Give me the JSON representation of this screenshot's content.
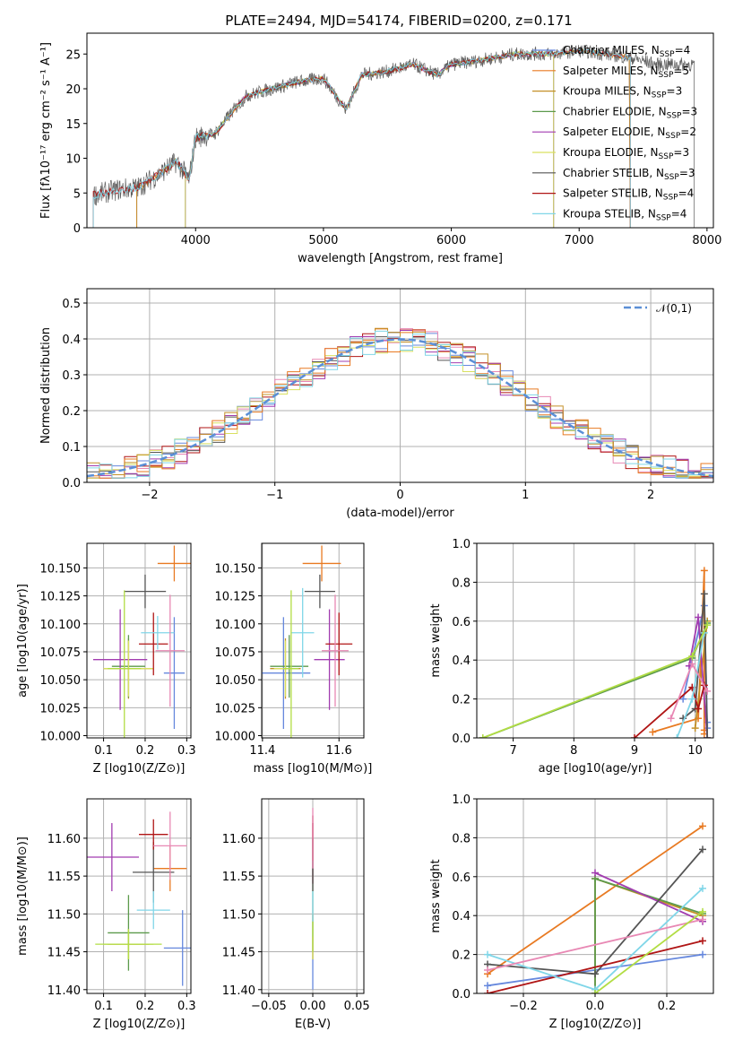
{
  "title": "PLATE=2494, MJD=54174, FIBERID=0200, z=0.171",
  "colors": [
    "#6688dd",
    "#e87a22",
    "#c49028",
    "#5c9a4c",
    "#a23cb0",
    "#d9e060",
    "#555555",
    "#b01515",
    "#80d6e8",
    "#e888b4",
    "#b2dd44"
  ],
  "chart_data": [
    {
      "id": "spectrum",
      "type": "line",
      "xlabel": "wavelength [Angstrom, rest frame]",
      "ylabel": "Flux [f_λ 10^-17 erg cm^-2 s^-1 A^-1]",
      "xlim": [
        3150,
        8050
      ],
      "ylim": [
        0,
        28
      ],
      "xticks": [
        4000,
        5000,
        6000,
        7000,
        8000
      ],
      "yticks": [
        0,
        5,
        10,
        15,
        20,
        25
      ],
      "grid": false,
      "legend_position": "right",
      "series": [
        {
          "name": "Chabrier MILES, N_SSP=4",
          "label": "Chabrier MILES, N",
          "nssp": "=4",
          "x": [
            3540,
            7400
          ]
        },
        {
          "name": "Salpeter MILES, N_SSP=5",
          "label": "Salpeter MILES, N",
          "nssp": "=5",
          "x": [
            3540,
            7400
          ]
        },
        {
          "name": "Kroupa MILES, N_SSP=3",
          "label": "Kroupa MILES, N",
          "nssp": "=3",
          "x": [
            3540,
            7400
          ]
        },
        {
          "name": "Chabrier ELODIE, N_SSP=3",
          "label": "Chabrier ELODIE, N",
          "nssp": "=3",
          "x": [
            3920,
            6800
          ]
        },
        {
          "name": "Salpeter ELODIE, N_SSP=2",
          "label": "Salpeter ELODIE, N",
          "nssp": "=2",
          "x": [
            3920,
            6800
          ]
        },
        {
          "name": "Kroupa ELODIE, N_SSP=3",
          "label": "Kroupa ELODIE, N",
          "nssp": "=3",
          "x": [
            3920,
            6800
          ]
        },
        {
          "name": "Chabrier STELIB, N_SSP=3",
          "label": "Chabrier STELIB, N",
          "nssp": "=3",
          "x": [
            3200,
            7900
          ]
        },
        {
          "name": "Salpeter STELIB, N_SSP=4",
          "label": "Salpeter STELIB, N",
          "nssp": "=4",
          "x": [
            3200,
            7400
          ]
        },
        {
          "name": "Kroupa STELIB, N_SSP=4",
          "label": "Kroupa STELIB, N",
          "nssp": "=4",
          "x": [
            3200,
            7400
          ]
        }
      ],
      "data_x": [
        3200,
        3400,
        3550,
        3700,
        3850,
        3950,
        4000,
        4150,
        4300,
        4400,
        4600,
        4800,
        5000,
        5175,
        5300,
        5500,
        5700,
        5890,
        6000,
        6200,
        6500,
        6800,
        7000,
        7200,
        7400,
        7600,
        7800
      ],
      "data_y": [
        4.7,
        5.5,
        5.8,
        7.5,
        9.5,
        7.0,
        13.0,
        13.5,
        17.0,
        19.0,
        20.0,
        21.0,
        21.5,
        17.0,
        22.0,
        22.5,
        23.5,
        22.0,
        23.5,
        24.0,
        25.0,
        25.0,
        25.5,
        25.0,
        24.5,
        23.5,
        23.5
      ]
    },
    {
      "id": "residuals",
      "type": "histogram",
      "xlabel": "(data-model)/error",
      "ylabel": "Normed distribution",
      "xlim": [
        -2.5,
        2.5
      ],
      "ylim": [
        0,
        0.54
      ],
      "xticks": [
        -2,
        -1,
        0,
        1,
        2
      ],
      "yticks": [
        0.0,
        0.1,
        0.2,
        0.3,
        0.4,
        0.5
      ],
      "grid": true,
      "legend_position": "top-right",
      "legend": "𝒩(0,1)",
      "bin_width": 0.1
    },
    {
      "id": "age-vs-Z",
      "type": "scatter",
      "xlabel": "Z [log10(Z/Z⊙)]",
      "ylabel": "age [log10(age/yr)]",
      "xlim": [
        0.06,
        0.31
      ],
      "ylim": [
        9.998,
        10.172
      ],
      "xticks": [
        0.1,
        0.2,
        0.3
      ],
      "yticks": [
        10.0,
        10.025,
        10.05,
        10.075,
        10.1,
        10.125,
        10.15
      ],
      "grid": true,
      "points": [
        {
          "x": 0.27,
          "y": 10.056,
          "xerr": 0.025,
          "yerr": 0.05,
          "c": 0
        },
        {
          "x": 0.27,
          "y": 10.154,
          "xerr": 0.04,
          "yerr": 0.016,
          "c": 1
        },
        {
          "x": 0.16,
          "y": 10.06,
          "xerr": 0.06,
          "yerr": 0.027,
          "c": 2
        },
        {
          "x": 0.16,
          "y": 10.062,
          "xerr": 0.04,
          "yerr": 0.028,
          "c": 3
        },
        {
          "x": 0.14,
          "y": 10.068,
          "xerr": 0.065,
          "yerr": 0.045,
          "c": 4
        },
        {
          "x": 0.16,
          "y": 10.06,
          "xerr": 0.06,
          "yerr": 0.025,
          "c": 5
        },
        {
          "x": 0.2,
          "y": 10.129,
          "xerr": 0.05,
          "yerr": 0.015,
          "c": 6
        },
        {
          "x": 0.22,
          "y": 10.082,
          "xerr": 0.035,
          "yerr": 0.028,
          "c": 7
        },
        {
          "x": 0.23,
          "y": 10.092,
          "xerr": 0.04,
          "yerr": 0.015,
          "c": 8
        },
        {
          "x": 0.26,
          "y": 10.076,
          "xerr": 0.035,
          "yerr": 0.05,
          "c": 9
        },
        {
          "x": 0.15,
          "y": 10.06,
          "xerr": 0.04,
          "yerr": 0.07,
          "c": 10
        }
      ]
    },
    {
      "id": "age-vs-mass",
      "type": "scatter",
      "xlabel": "mass [log10(M/M⊙)]",
      "ylabel": "",
      "xlim": [
        11.398,
        11.665
      ],
      "ylim": [
        9.998,
        10.172
      ],
      "xticks": [
        11.4,
        11.6
      ],
      "yticks": [
        10.0,
        10.025,
        10.05,
        10.075,
        10.1,
        10.125,
        10.15
      ],
      "grid": true,
      "points": [
        {
          "x": 11.455,
          "y": 10.056,
          "xerr": 0.07,
          "yerr": 0.05,
          "c": 0
        },
        {
          "x": 11.555,
          "y": 10.154,
          "xerr": 0.05,
          "yerr": 0.016,
          "c": 1
        },
        {
          "x": 11.46,
          "y": 10.06,
          "xerr": 0.04,
          "yerr": 0.027,
          "c": 2
        },
        {
          "x": 11.47,
          "y": 10.062,
          "xerr": 0.05,
          "yerr": 0.028,
          "c": 3
        },
        {
          "x": 11.575,
          "y": 10.068,
          "xerr": 0.04,
          "yerr": 0.045,
          "c": 4
        },
        {
          "x": 11.46,
          "y": 10.06,
          "xerr": 0.03,
          "yerr": 0.025,
          "c": 5
        },
        {
          "x": 11.55,
          "y": 10.129,
          "xerr": 0.04,
          "yerr": 0.015,
          "c": 6
        },
        {
          "x": 11.6,
          "y": 10.082,
          "xerr": 0.035,
          "yerr": 0.028,
          "c": 7
        },
        {
          "x": 11.505,
          "y": 10.092,
          "xerr": 0.03,
          "yerr": 0.04,
          "c": 8
        },
        {
          "x": 11.59,
          "y": 10.076,
          "xerr": 0.035,
          "yerr": 0.05,
          "c": 9
        },
        {
          "x": 11.475,
          "y": 10.06,
          "xerr": 0.02,
          "yerr": 0.07,
          "c": 10
        }
      ]
    },
    {
      "id": "weight-vs-age",
      "type": "line",
      "xlabel": "age [log10(age/yr)]",
      "ylabel": "mass weight",
      "xlim": [
        6.4,
        10.3
      ],
      "ylim": [
        0,
        1
      ],
      "xticks": [
        7,
        8,
        9,
        10
      ],
      "yticks": [
        0.0,
        0.2,
        0.4,
        0.6,
        0.8,
        1.0
      ],
      "grid": true,
      "series": [
        {
          "c": 0,
          "x": [
            9.8,
            10.15,
            10.2,
            10.2
          ],
          "y": [
            0.2,
            0.68,
            0.05,
            0.08
          ]
        },
        {
          "c": 1,
          "x": [
            9.3,
            10.05,
            10.15,
            10.15,
            10.15
          ],
          "y": [
            0.03,
            0.1,
            0.86,
            0.02,
            0.04
          ]
        },
        {
          "c": 2,
          "x": [
            10.0,
            10.2
          ],
          "y": [
            0.05,
            0.6
          ]
        },
        {
          "c": 3,
          "x": [
            6.5,
            9.95,
            10.2
          ],
          "y": [
            0.0,
            0.41,
            0.59
          ]
        },
        {
          "c": 4,
          "x": [
            9.9,
            10.05,
            10.2
          ],
          "y": [
            0.37,
            0.62,
            0.0
          ]
        },
        {
          "c": 6,
          "x": [
            9.8,
            10.0,
            10.15,
            10.2
          ],
          "y": [
            0.1,
            0.15,
            0.74,
            0.0
          ]
        },
        {
          "c": 7,
          "x": [
            9.0,
            9.95,
            10.05,
            10.15
          ],
          "y": [
            0.0,
            0.26,
            0.15,
            0.27
          ]
        },
        {
          "c": 8,
          "x": [
            9.7,
            9.95,
            10.15
          ],
          "y": [
            0.0,
            0.2,
            0.54
          ]
        },
        {
          "c": 9,
          "x": [
            9.6,
            9.95,
            10.2
          ],
          "y": [
            0.1,
            0.38,
            0.24
          ]
        },
        {
          "c": 10,
          "x": [
            6.5,
            9.95,
            10.2
          ],
          "y": [
            0.0,
            0.42,
            0.58
          ]
        }
      ]
    },
    {
      "id": "mass-vs-Z",
      "type": "scatter",
      "xlabel": "Z [log10(Z/Z⊙)]",
      "ylabel": "mass [log10(M/M⊙)]",
      "xlim": [
        0.06,
        0.31
      ],
      "ylim": [
        11.395,
        11.652
      ],
      "xticks": [
        0.1,
        0.2,
        0.3
      ],
      "yticks": [
        11.4,
        11.45,
        11.5,
        11.55,
        11.6
      ],
      "grid": true,
      "points": [
        {
          "x": 0.29,
          "y": 11.455,
          "xerr": 0.045,
          "yerr": 0.05,
          "c": 0
        },
        {
          "x": 0.26,
          "y": 11.56,
          "xerr": 0.04,
          "yerr": 0.03,
          "c": 1
        },
        {
          "x": 0.16,
          "y": 11.46,
          "xerr": 0.05,
          "yerr": 0.02,
          "c": 2
        },
        {
          "x": 0.16,
          "y": 11.475,
          "xerr": 0.05,
          "yerr": 0.05,
          "c": 3
        },
        {
          "x": 0.12,
          "y": 11.575,
          "xerr": 0.065,
          "yerr": 0.045,
          "c": 4
        },
        {
          "x": 0.16,
          "y": 11.46,
          "xerr": 0.06,
          "yerr": 0.02,
          "c": 5
        },
        {
          "x": 0.22,
          "y": 11.555,
          "xerr": 0.05,
          "yerr": 0.04,
          "c": 6
        },
        {
          "x": 0.22,
          "y": 11.605,
          "xerr": 0.035,
          "yerr": 0.02,
          "c": 7
        },
        {
          "x": 0.22,
          "y": 11.505,
          "xerr": 0.04,
          "yerr": 0.025,
          "c": 8
        },
        {
          "x": 0.26,
          "y": 11.59,
          "xerr": 0.04,
          "yerr": 0.045,
          "c": 9
        },
        {
          "x": 0.16,
          "y": 11.46,
          "xerr": 0.08,
          "yerr": 0.02,
          "c": 10
        }
      ]
    },
    {
      "id": "mass-vs-EBV",
      "type": "scatter",
      "xlabel": "E(B-V)",
      "ylabel": "",
      "xlim": [
        -0.058,
        0.058
      ],
      "ylim": [
        11.395,
        11.652
      ],
      "xticks": [
        -0.05,
        0.0,
        0.05
      ],
      "yticks": [
        11.4,
        11.45,
        11.5,
        11.55,
        11.6
      ],
      "grid": true,
      "points": [
        {
          "x": 0.0,
          "y": 11.46,
          "xerr": 0,
          "yerr": 0.06,
          "c": 0
        },
        {
          "x": 0.0,
          "y": 11.58,
          "xerr": 0,
          "yerr": 0.04,
          "c": 1
        },
        {
          "x": 0.0,
          "y": 11.47,
          "xerr": 0,
          "yerr": 0.03,
          "c": 2
        },
        {
          "x": 0.0,
          "y": 11.56,
          "xerr": 0,
          "yerr": 0.04,
          "c": 3
        },
        {
          "x": 0.0,
          "y": 11.58,
          "xerr": 0,
          "yerr": 0.04,
          "c": 4
        },
        {
          "x": 0.0,
          "y": 11.48,
          "xerr": 0,
          "yerr": 0.04,
          "c": 5
        },
        {
          "x": 0.0,
          "y": 11.55,
          "xerr": 0,
          "yerr": 0.02,
          "c": 6
        },
        {
          "x": 0.0,
          "y": 11.6,
          "xerr": 0,
          "yerr": 0.03,
          "c": 7
        },
        {
          "x": 0.0,
          "y": 11.5,
          "xerr": 0,
          "yerr": 0.03,
          "c": 8
        },
        {
          "x": 0.0,
          "y": 11.6,
          "xerr": 0,
          "yerr": 0.04,
          "c": 9
        },
        {
          "x": 0.0,
          "y": 11.47,
          "xerr": 0,
          "yerr": 0.02,
          "c": 10
        }
      ]
    },
    {
      "id": "weight-vs-Z",
      "type": "line",
      "xlabel": "Z [log10(Z/Z⊙)]",
      "ylabel": "mass weight",
      "xlim": [
        -0.33,
        0.33
      ],
      "ylim": [
        0,
        1
      ],
      "xticks": [
        -0.2,
        0.0,
        0.2
      ],
      "yticks": [
        0.0,
        0.2,
        0.4,
        0.6,
        0.8,
        1.0
      ],
      "grid": true,
      "series": [
        {
          "c": 0,
          "x": [
            -0.3,
            0.3
          ],
          "y": [
            0.04,
            0.2
          ]
        },
        {
          "c": 1,
          "x": [
            -0.3,
            0.3
          ],
          "y": [
            0.1,
            0.86
          ]
        },
        {
          "c": 2,
          "x": [
            0.0,
            0.0,
            0.3
          ],
          "y": [
            0.02,
            0.59,
            0.4
          ]
        },
        {
          "c": 3,
          "x": [
            0.0,
            0.0,
            0.3
          ],
          "y": [
            0.0,
            0.59,
            0.41
          ]
        },
        {
          "c": 4,
          "x": [
            0.0,
            0.3
          ],
          "y": [
            0.62,
            0.37
          ]
        },
        {
          "c": 6,
          "x": [
            -0.3,
            0.0,
            0.3
          ],
          "y": [
            0.15,
            0.1,
            0.74
          ]
        },
        {
          "c": 7,
          "x": [
            -0.3,
            0.3
          ],
          "y": [
            0.0,
            0.27
          ]
        },
        {
          "c": 8,
          "x": [
            -0.3,
            0.0,
            0.3
          ],
          "y": [
            0.2,
            0.02,
            0.54
          ]
        },
        {
          "c": 9,
          "x": [
            -0.3,
            0.3
          ],
          "y": [
            0.12,
            0.38
          ]
        },
        {
          "c": 10,
          "x": [
            0.0,
            0.3
          ],
          "y": [
            0.0,
            0.42
          ]
        }
      ]
    }
  ]
}
